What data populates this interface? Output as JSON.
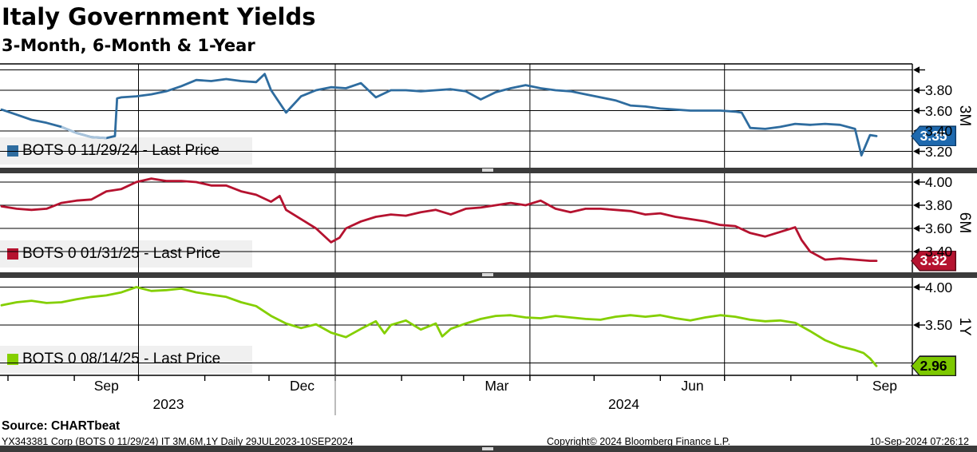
{
  "header": {
    "title": "Italy Government Yields",
    "subtitle": "3-Month, 6-Month & 1-Year"
  },
  "footer": {
    "source": "Source: CHARTbeat",
    "security_info": "YX343381 Corp (BOTS 0 11/29/24) IT 3M,6M,1Y  Daily 29JUL2023-10SEP2024",
    "copyright": "Copyright© 2024 Bloomberg Finance L.P.",
    "timestamp": "10-Sep-2024 07:26:12"
  },
  "chart_data": {
    "type": "line",
    "x_range": {
      "start": "2023-07-29",
      "end": "2024-09-10"
    },
    "quarter_gridlines": [
      "2023-10-01",
      "2024-01-01",
      "2024-04-01",
      "2024-07-01"
    ],
    "months": [
      {
        "date": "2023-08-01",
        "label": ""
      },
      {
        "date": "2023-09-01",
        "label": "Sep"
      },
      {
        "date": "2023-10-01",
        "label": ""
      },
      {
        "date": "2023-11-01",
        "label": ""
      },
      {
        "date": "2023-12-01",
        "label": "Dec"
      },
      {
        "date": "2024-01-01",
        "label": ""
      },
      {
        "date": "2024-02-01",
        "label": ""
      },
      {
        "date": "2024-03-01",
        "label": "Mar"
      },
      {
        "date": "2024-04-01",
        "label": ""
      },
      {
        "date": "2024-05-01",
        "label": ""
      },
      {
        "date": "2024-06-01",
        "label": "Jun"
      },
      {
        "date": "2024-07-01",
        "label": ""
      },
      {
        "date": "2024-08-01",
        "label": ""
      },
      {
        "date": "2024-09-01",
        "label": "Sep"
      }
    ],
    "years": [
      {
        "label": "2023",
        "from": "2023-07-29",
        "to": "2024-01-01"
      },
      {
        "label": "2024",
        "from": "2024-01-01",
        "to": "2024-10-01"
      }
    ],
    "panels": [
      {
        "name": "3M",
        "axis_label": "3M",
        "legend_label": "BOTS 0 11/29/24 - Last Price",
        "line_color": "#2e6c9f",
        "light_color": "#a9c4dc",
        "light_segment": {
          "from": "2023-08-24",
          "to": "2023-09-18"
        },
        "badge": {
          "label": "3.35",
          "bg": "#1e69ae",
          "text": "#ffffff",
          "border": "#0e3d6b"
        },
        "last_price": 3.35,
        "ticks": [
          {
            "value": 4.0,
            "label": ""
          },
          {
            "value": 3.8,
            "label": "3.80"
          },
          {
            "value": 3.6,
            "label": "3.60"
          },
          {
            "value": 3.4,
            "label": "3.40"
          },
          {
            "value": 3.2,
            "label": "3.20"
          }
        ],
        "series": [
          [
            "2023-07-29",
            3.61
          ],
          [
            "2023-08-05",
            3.56
          ],
          [
            "2023-08-12",
            3.51
          ],
          [
            "2023-08-19",
            3.48
          ],
          [
            "2023-08-26",
            3.44
          ],
          [
            "2023-09-02",
            3.38
          ],
          [
            "2023-09-09",
            3.34
          ],
          [
            "2023-09-16",
            3.33
          ],
          [
            "2023-09-20",
            3.35
          ],
          [
            "2023-09-21",
            3.72
          ],
          [
            "2023-09-23",
            3.73
          ],
          [
            "2023-09-30",
            3.74
          ],
          [
            "2023-10-07",
            3.76
          ],
          [
            "2023-10-14",
            3.79
          ],
          [
            "2023-10-21",
            3.84
          ],
          [
            "2023-10-28",
            3.9
          ],
          [
            "2023-11-04",
            3.89
          ],
          [
            "2023-11-11",
            3.91
          ],
          [
            "2023-11-18",
            3.89
          ],
          [
            "2023-11-25",
            3.88
          ],
          [
            "2023-11-29",
            3.96
          ],
          [
            "2023-12-02",
            3.8
          ],
          [
            "2023-12-09",
            3.58
          ],
          [
            "2023-12-16",
            3.74
          ],
          [
            "2023-12-23",
            3.8
          ],
          [
            "2023-12-30",
            3.83
          ],
          [
            "2024-01-06",
            3.82
          ],
          [
            "2024-01-13",
            3.87
          ],
          [
            "2024-01-20",
            3.73
          ],
          [
            "2024-01-27",
            3.8
          ],
          [
            "2024-02-03",
            3.8
          ],
          [
            "2024-02-10",
            3.79
          ],
          [
            "2024-02-17",
            3.8
          ],
          [
            "2024-02-24",
            3.81
          ],
          [
            "2024-03-02",
            3.79
          ],
          [
            "2024-03-09",
            3.71
          ],
          [
            "2024-03-16",
            3.78
          ],
          [
            "2024-03-23",
            3.82
          ],
          [
            "2024-03-30",
            3.85
          ],
          [
            "2024-04-06",
            3.82
          ],
          [
            "2024-04-13",
            3.8
          ],
          [
            "2024-04-20",
            3.79
          ],
          [
            "2024-04-27",
            3.76
          ],
          [
            "2024-05-04",
            3.73
          ],
          [
            "2024-05-11",
            3.7
          ],
          [
            "2024-05-18",
            3.65
          ],
          [
            "2024-05-25",
            3.64
          ],
          [
            "2024-06-01",
            3.62
          ],
          [
            "2024-06-08",
            3.61
          ],
          [
            "2024-06-15",
            3.6
          ],
          [
            "2024-06-22",
            3.6
          ],
          [
            "2024-06-29",
            3.6
          ],
          [
            "2024-07-06",
            3.59
          ],
          [
            "2024-07-09",
            3.58
          ],
          [
            "2024-07-13",
            3.43
          ],
          [
            "2024-07-20",
            3.42
          ],
          [
            "2024-07-27",
            3.44
          ],
          [
            "2024-08-03",
            3.47
          ],
          [
            "2024-08-10",
            3.46
          ],
          [
            "2024-08-17",
            3.47
          ],
          [
            "2024-08-24",
            3.46
          ],
          [
            "2024-08-31",
            3.42
          ],
          [
            "2024-09-03",
            3.16
          ],
          [
            "2024-09-07",
            3.36
          ],
          [
            "2024-09-10",
            3.35
          ]
        ]
      },
      {
        "name": "6M",
        "axis_label": "6M",
        "legend_label": "BOTS 0 01/31/25 - Last Price",
        "line_color": "#b5122f",
        "badge": {
          "label": "3.32",
          "bg": "#b5122f",
          "text": "#ffffff",
          "border": "#5f0a18"
        },
        "last_price": 3.32,
        "ticks": [
          {
            "value": 4.0,
            "label": "4.00"
          },
          {
            "value": 3.8,
            "label": "3.80"
          },
          {
            "value": 3.6,
            "label": "3.60"
          },
          {
            "value": 3.4,
            "label": "3.40"
          }
        ],
        "series": [
          [
            "2023-07-29",
            3.79
          ],
          [
            "2023-08-05",
            3.77
          ],
          [
            "2023-08-12",
            3.76
          ],
          [
            "2023-08-19",
            3.77
          ],
          [
            "2023-08-26",
            3.82
          ],
          [
            "2023-09-02",
            3.84
          ],
          [
            "2023-09-09",
            3.85
          ],
          [
            "2023-09-16",
            3.92
          ],
          [
            "2023-09-23",
            3.94
          ],
          [
            "2023-09-30",
            4.0
          ],
          [
            "2023-10-07",
            4.03
          ],
          [
            "2023-10-14",
            4.01
          ],
          [
            "2023-10-21",
            4.01
          ],
          [
            "2023-10-28",
            4.0
          ],
          [
            "2023-11-04",
            3.97
          ],
          [
            "2023-11-11",
            3.97
          ],
          [
            "2023-11-18",
            3.92
          ],
          [
            "2023-11-25",
            3.89
          ],
          [
            "2023-12-02",
            3.83
          ],
          [
            "2023-12-06",
            3.88
          ],
          [
            "2023-12-09",
            3.76
          ],
          [
            "2023-12-16",
            3.68
          ],
          [
            "2023-12-23",
            3.6
          ],
          [
            "2023-12-30",
            3.48
          ],
          [
            "2024-01-03",
            3.52
          ],
          [
            "2024-01-06",
            3.6
          ],
          [
            "2024-01-13",
            3.66
          ],
          [
            "2024-01-20",
            3.7
          ],
          [
            "2024-01-27",
            3.72
          ],
          [
            "2024-02-03",
            3.71
          ],
          [
            "2024-02-10",
            3.74
          ],
          [
            "2024-02-17",
            3.76
          ],
          [
            "2024-02-24",
            3.72
          ],
          [
            "2024-03-02",
            3.77
          ],
          [
            "2024-03-09",
            3.78
          ],
          [
            "2024-03-16",
            3.8
          ],
          [
            "2024-03-23",
            3.82
          ],
          [
            "2024-03-30",
            3.8
          ],
          [
            "2024-04-06",
            3.84
          ],
          [
            "2024-04-13",
            3.77
          ],
          [
            "2024-04-20",
            3.74
          ],
          [
            "2024-04-27",
            3.77
          ],
          [
            "2024-05-04",
            3.77
          ],
          [
            "2024-05-11",
            3.76
          ],
          [
            "2024-05-18",
            3.75
          ],
          [
            "2024-05-25",
            3.72
          ],
          [
            "2024-06-01",
            3.73
          ],
          [
            "2024-06-08",
            3.7
          ],
          [
            "2024-06-15",
            3.68
          ],
          [
            "2024-06-22",
            3.66
          ],
          [
            "2024-06-29",
            3.63
          ],
          [
            "2024-07-06",
            3.62
          ],
          [
            "2024-07-13",
            3.56
          ],
          [
            "2024-07-20",
            3.53
          ],
          [
            "2024-07-27",
            3.57
          ],
          [
            "2024-08-03",
            3.61
          ],
          [
            "2024-08-06",
            3.5
          ],
          [
            "2024-08-10",
            3.4
          ],
          [
            "2024-08-17",
            3.33
          ],
          [
            "2024-08-24",
            3.34
          ],
          [
            "2024-08-31",
            3.33
          ],
          [
            "2024-09-07",
            3.32
          ],
          [
            "2024-09-10",
            3.32
          ]
        ]
      },
      {
        "name": "1Y",
        "axis_label": "1Y",
        "legend_label": "BOTS 0 08/14/25 - Last Price",
        "line_color": "#84cf00",
        "badge": {
          "label": "2.96",
          "bg": "#7dc800",
          "text": "#000000",
          "border": "#1d1d1d"
        },
        "last_price": 2.96,
        "ticks": [
          {
            "value": 4.0,
            "label": "4.00"
          },
          {
            "value": 3.5,
            "label": "3.50"
          },
          {
            "value": 3.0,
            "label": ""
          }
        ],
        "series": [
          [
            "2023-07-29",
            3.76
          ],
          [
            "2023-08-05",
            3.8
          ],
          [
            "2023-08-12",
            3.82
          ],
          [
            "2023-08-19",
            3.79
          ],
          [
            "2023-08-26",
            3.8
          ],
          [
            "2023-09-02",
            3.84
          ],
          [
            "2023-09-09",
            3.87
          ],
          [
            "2023-09-16",
            3.89
          ],
          [
            "2023-09-23",
            3.93
          ],
          [
            "2023-09-30",
            4.0
          ],
          [
            "2023-10-07",
            3.95
          ],
          [
            "2023-10-14",
            3.96
          ],
          [
            "2023-10-21",
            3.98
          ],
          [
            "2023-10-28",
            3.93
          ],
          [
            "2023-11-04",
            3.9
          ],
          [
            "2023-11-11",
            3.87
          ],
          [
            "2023-11-18",
            3.8
          ],
          [
            "2023-11-25",
            3.75
          ],
          [
            "2023-12-02",
            3.62
          ],
          [
            "2023-12-09",
            3.52
          ],
          [
            "2023-12-16",
            3.46
          ],
          [
            "2023-12-23",
            3.51
          ],
          [
            "2023-12-30",
            3.4
          ],
          [
            "2024-01-06",
            3.34
          ],
          [
            "2024-01-13",
            3.45
          ],
          [
            "2024-01-20",
            3.55
          ],
          [
            "2024-01-24",
            3.39
          ],
          [
            "2024-01-27",
            3.5
          ],
          [
            "2024-02-03",
            3.56
          ],
          [
            "2024-02-10",
            3.44
          ],
          [
            "2024-02-17",
            3.52
          ],
          [
            "2024-02-20",
            3.35
          ],
          [
            "2024-02-24",
            3.45
          ],
          [
            "2024-03-02",
            3.52
          ],
          [
            "2024-03-09",
            3.58
          ],
          [
            "2024-03-16",
            3.62
          ],
          [
            "2024-03-23",
            3.63
          ],
          [
            "2024-03-30",
            3.6
          ],
          [
            "2024-04-06",
            3.59
          ],
          [
            "2024-04-13",
            3.62
          ],
          [
            "2024-04-20",
            3.6
          ],
          [
            "2024-04-27",
            3.58
          ],
          [
            "2024-05-04",
            3.57
          ],
          [
            "2024-05-11",
            3.61
          ],
          [
            "2024-05-18",
            3.63
          ],
          [
            "2024-05-25",
            3.61
          ],
          [
            "2024-06-01",
            3.63
          ],
          [
            "2024-06-08",
            3.59
          ],
          [
            "2024-06-15",
            3.56
          ],
          [
            "2024-06-22",
            3.6
          ],
          [
            "2024-06-29",
            3.63
          ],
          [
            "2024-07-06",
            3.61
          ],
          [
            "2024-07-13",
            3.57
          ],
          [
            "2024-07-20",
            3.55
          ],
          [
            "2024-07-27",
            3.56
          ],
          [
            "2024-08-03",
            3.53
          ],
          [
            "2024-08-10",
            3.42
          ],
          [
            "2024-08-17",
            3.3
          ],
          [
            "2024-08-24",
            3.22
          ],
          [
            "2024-08-31",
            3.17
          ],
          [
            "2024-09-04",
            3.13
          ],
          [
            "2024-09-07",
            3.06
          ],
          [
            "2024-09-10",
            2.96
          ]
        ]
      }
    ]
  }
}
